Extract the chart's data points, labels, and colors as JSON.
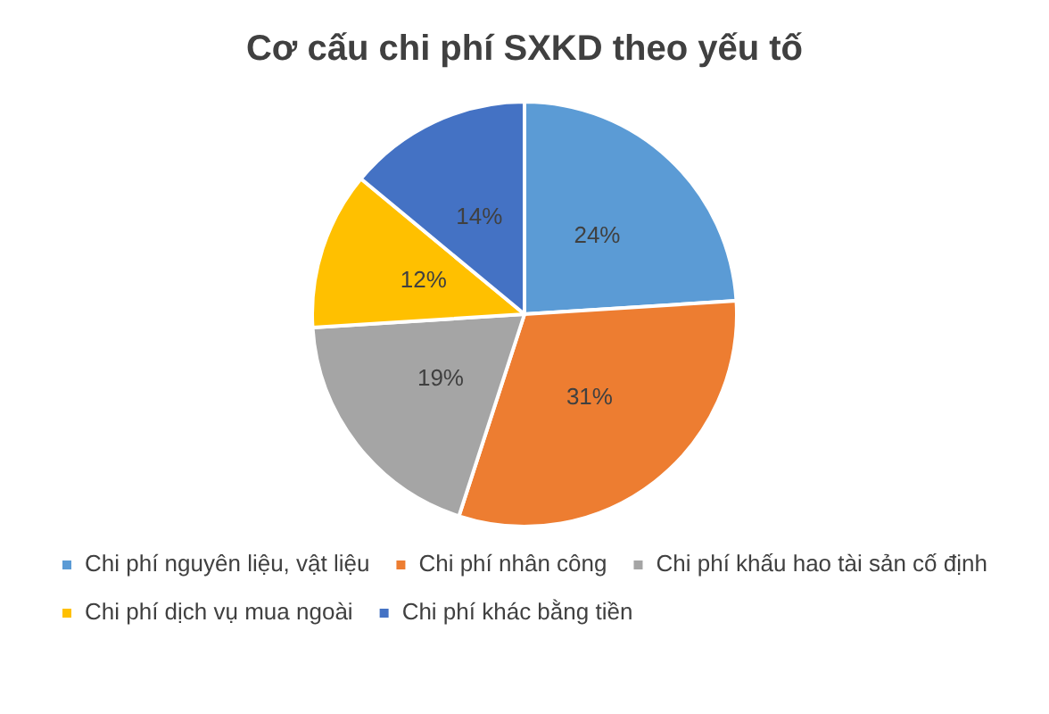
{
  "chart_data": {
    "type": "pie",
    "title": "Cơ cấu chi phí SXKD theo yếu tố",
    "categories": [
      "Chi phí nguyên liệu, vật liệu",
      "Chi phí nhân công",
      "Chi phí khấu hao tài sản cố định",
      "Chi phí dịch vụ mua ngoài",
      "Chi phí khác bằng tiền"
    ],
    "values": [
      24,
      31,
      19,
      12,
      14
    ],
    "colors": [
      "#5b9bd5",
      "#ed7d31",
      "#a5a5a5",
      "#ffc000",
      "#4472c4"
    ],
    "value_labels": [
      "24%",
      "31%",
      "19%",
      "12%",
      "14%"
    ],
    "legend": "bottom"
  }
}
